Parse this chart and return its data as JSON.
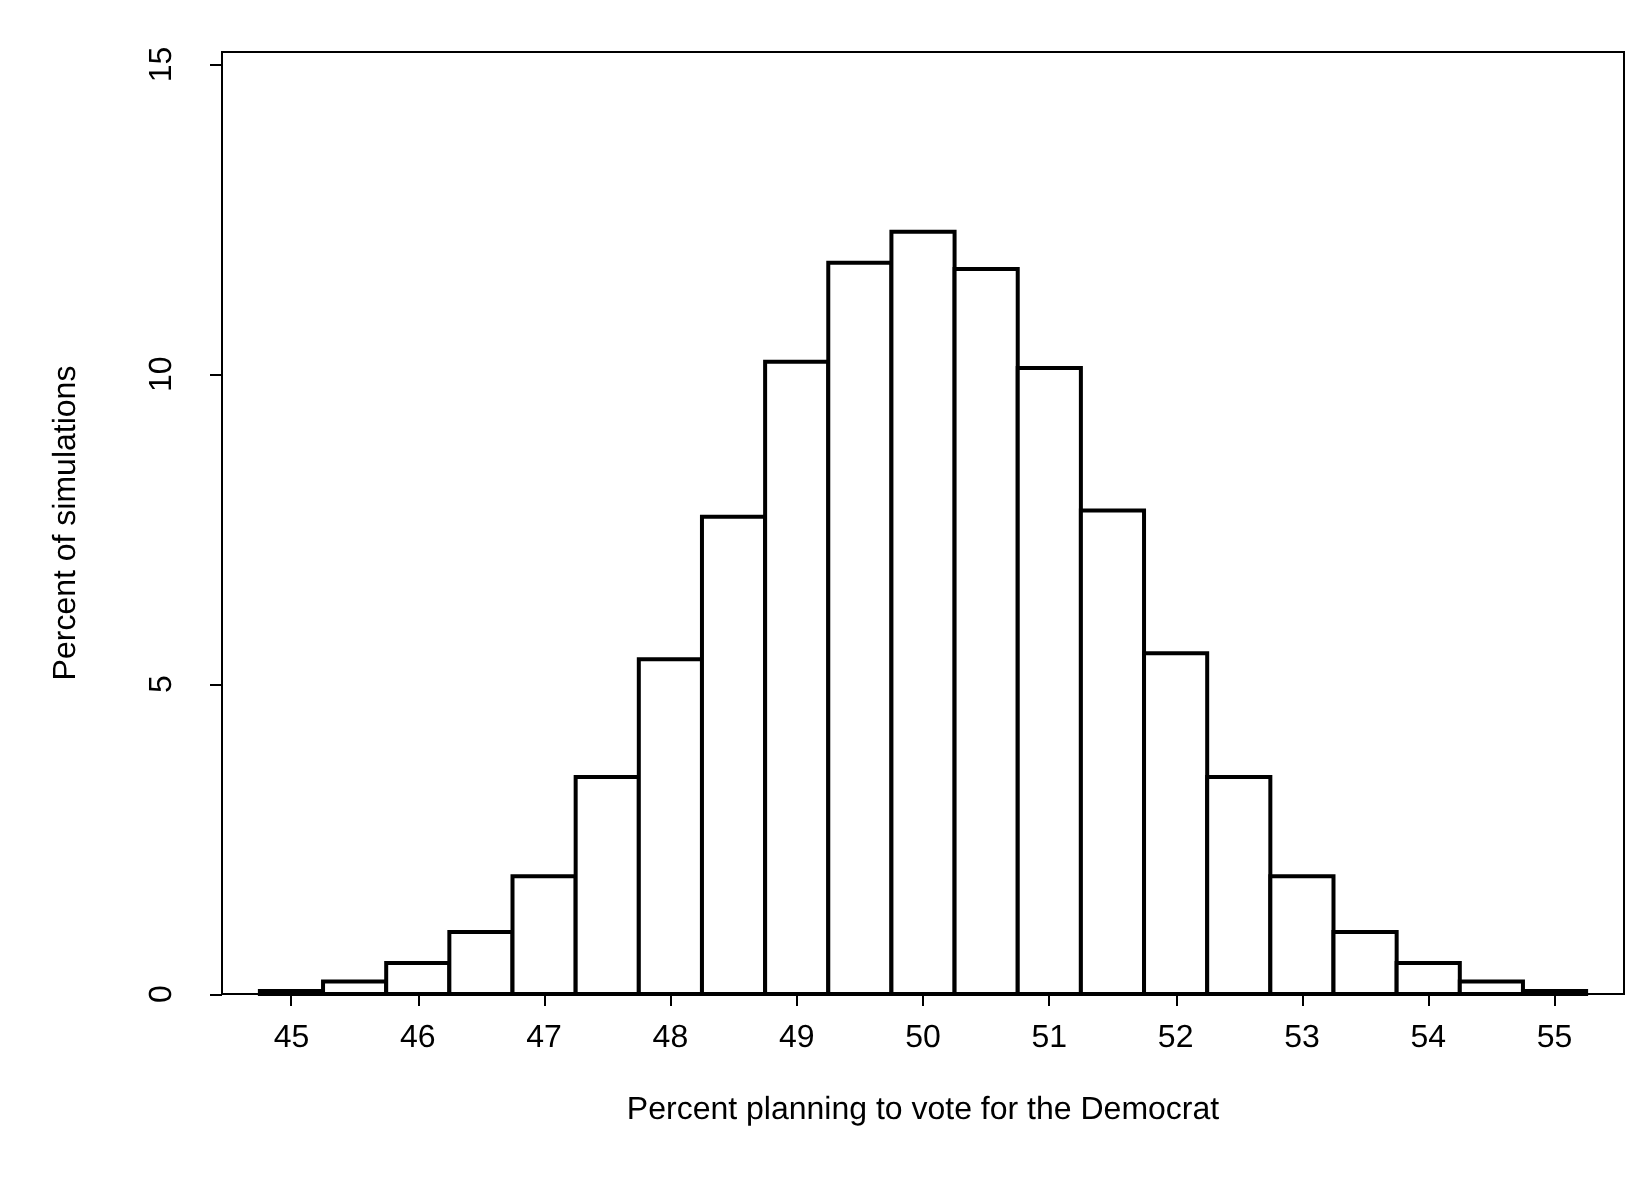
{
  "chart_data": {
    "type": "histogram",
    "xlabel": "Percent planning to vote for the Democrat",
    "ylabel": "Percent of simulations",
    "bins": [
      44.75,
      45.25,
      45.75,
      46.25,
      46.75,
      47.25,
      47.75,
      48.25,
      48.75,
      49.25,
      49.75,
      50.25,
      50.75,
      51.25,
      51.75,
      52.25,
      52.75,
      53.25,
      53.75,
      54.25,
      54.75,
      55.25
    ],
    "values": [
      0.05,
      0.2,
      0.5,
      1.0,
      1.9,
      3.5,
      5.4,
      7.7,
      10.2,
      11.8,
      12.3,
      11.7,
      10.1,
      7.8,
      5.5,
      3.5,
      1.9,
      1.0,
      0.5,
      0.2,
      0.05
    ],
    "color": "#ffffff",
    "xlim": [
      44.45,
      55.55
    ],
    "xticks": [
      45,
      46,
      47,
      48,
      49,
      50,
      51,
      52,
      53,
      54,
      55
    ],
    "ylim": [
      0,
      15.2
    ],
    "yticks": [
      0,
      5,
      10,
      15
    ],
    "grid": false
  }
}
